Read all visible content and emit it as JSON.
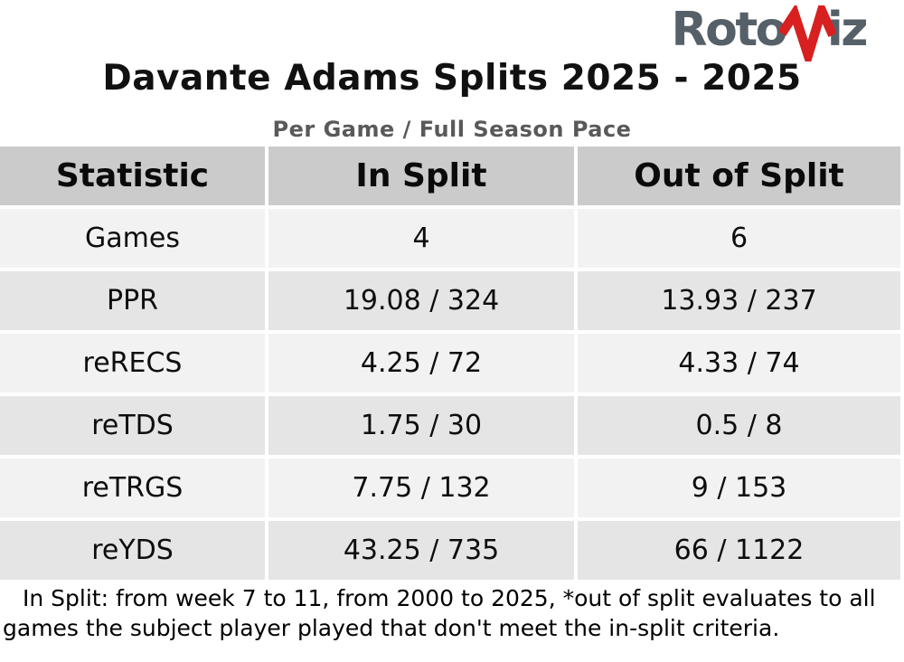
{
  "logo": {
    "text_left": "Roto",
    "text_right": "iz",
    "icon": "pulse-v-icon"
  },
  "title": "Davante Adams Splits 2025 - 2025",
  "subtitle": "Per Game / Full Season Pace",
  "chart_data": {
    "type": "table",
    "title": "Davante Adams Splits 2025 - 2025",
    "subtitle": "Per Game / Full Season Pace",
    "columns": [
      "Statistic",
      "In Split",
      "Out of Split"
    ],
    "rows": [
      [
        "Games",
        "4",
        "6"
      ],
      [
        "PPR",
        "19.08 / 324",
        "13.93 / 237"
      ],
      [
        "reRECS",
        "4.25 / 72",
        "4.33 / 74"
      ],
      [
        "reTDS",
        "1.75 / 30",
        "0.5 / 8"
      ],
      [
        "reTRGS",
        "7.75 / 132",
        "9 / 153"
      ],
      [
        "reYDS",
        "43.25 / 735",
        "66 / 1122"
      ]
    ],
    "footnote": "In Split: from week 7 to 11, from 2000 to 2025,  *out of split evaluates to all games the subject player played that don't meet the in-split criteria."
  },
  "footnote": {
    "line1": "In Split: from week 7 to 11, from 2000 to 2025,  *out of split evaluates to all",
    "line2": "games the subject player played that don't meet the in-split criteria."
  },
  "colors": {
    "brand_gray": "#566069",
    "brand_red": "#d7201f",
    "header_bg": "#cbcbcb",
    "row_light": "#f2f2f2",
    "row_dark": "#e5e5e5",
    "title": "#111111",
    "subtitle": "#595959"
  }
}
